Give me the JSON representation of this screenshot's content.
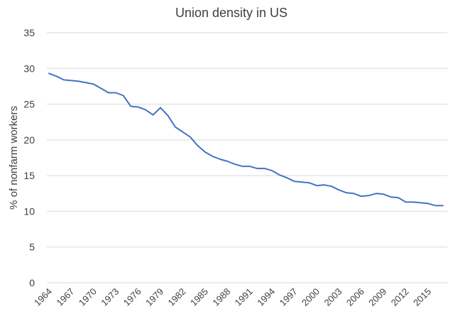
{
  "chart_data": {
    "type": "line",
    "title": "Union density in US",
    "xlabel": "",
    "ylabel": "% of nonfarm workers",
    "ylim": [
      0,
      35
    ],
    "yticks": [
      0,
      5,
      10,
      15,
      20,
      25,
      30,
      35
    ],
    "xlim": [
      1964,
      2017
    ],
    "xticks": [
      1964,
      1967,
      1970,
      1973,
      1976,
      1979,
      1982,
      1985,
      1988,
      1991,
      1994,
      1997,
      2000,
      2003,
      2006,
      2009,
      2012,
      2015
    ],
    "grid": true,
    "legend": "none",
    "series_color": "#4472c4",
    "series": [
      {
        "x": [
          1964,
          1965,
          1966,
          1967,
          1968,
          1969,
          1970,
          1971,
          1972,
          1973,
          1974,
          1975,
          1976,
          1977,
          1978,
          1979,
          1980,
          1981,
          1982,
          1983,
          1984,
          1985,
          1986,
          1987,
          1988,
          1989,
          1990,
          1991,
          1992,
          1993,
          1994,
          1995,
          1996,
          1997,
          1998,
          1999,
          2000,
          2001,
          2002,
          2003,
          2004,
          2005,
          2006,
          2007,
          2008,
          2009,
          2010,
          2011,
          2012,
          2013,
          2014,
          2015,
          2016,
          2017
        ],
        "values": [
          29.3,
          28.9,
          28.4,
          28.3,
          28.2,
          28.0,
          27.8,
          27.2,
          26.6,
          26.6,
          26.2,
          24.7,
          24.6,
          24.2,
          23.5,
          24.5,
          23.4,
          21.8,
          21.1,
          20.4,
          19.2,
          18.3,
          17.7,
          17.3,
          17.0,
          16.6,
          16.3,
          16.3,
          16.0,
          16.0,
          15.7,
          15.1,
          14.7,
          14.2,
          14.1,
          14.0,
          13.6,
          13.7,
          13.5,
          13.0,
          12.6,
          12.5,
          12.1,
          12.2,
          12.5,
          12.4,
          12.0,
          11.9,
          11.3,
          11.3,
          11.2,
          11.1,
          10.8,
          10.8
        ]
      }
    ]
  }
}
